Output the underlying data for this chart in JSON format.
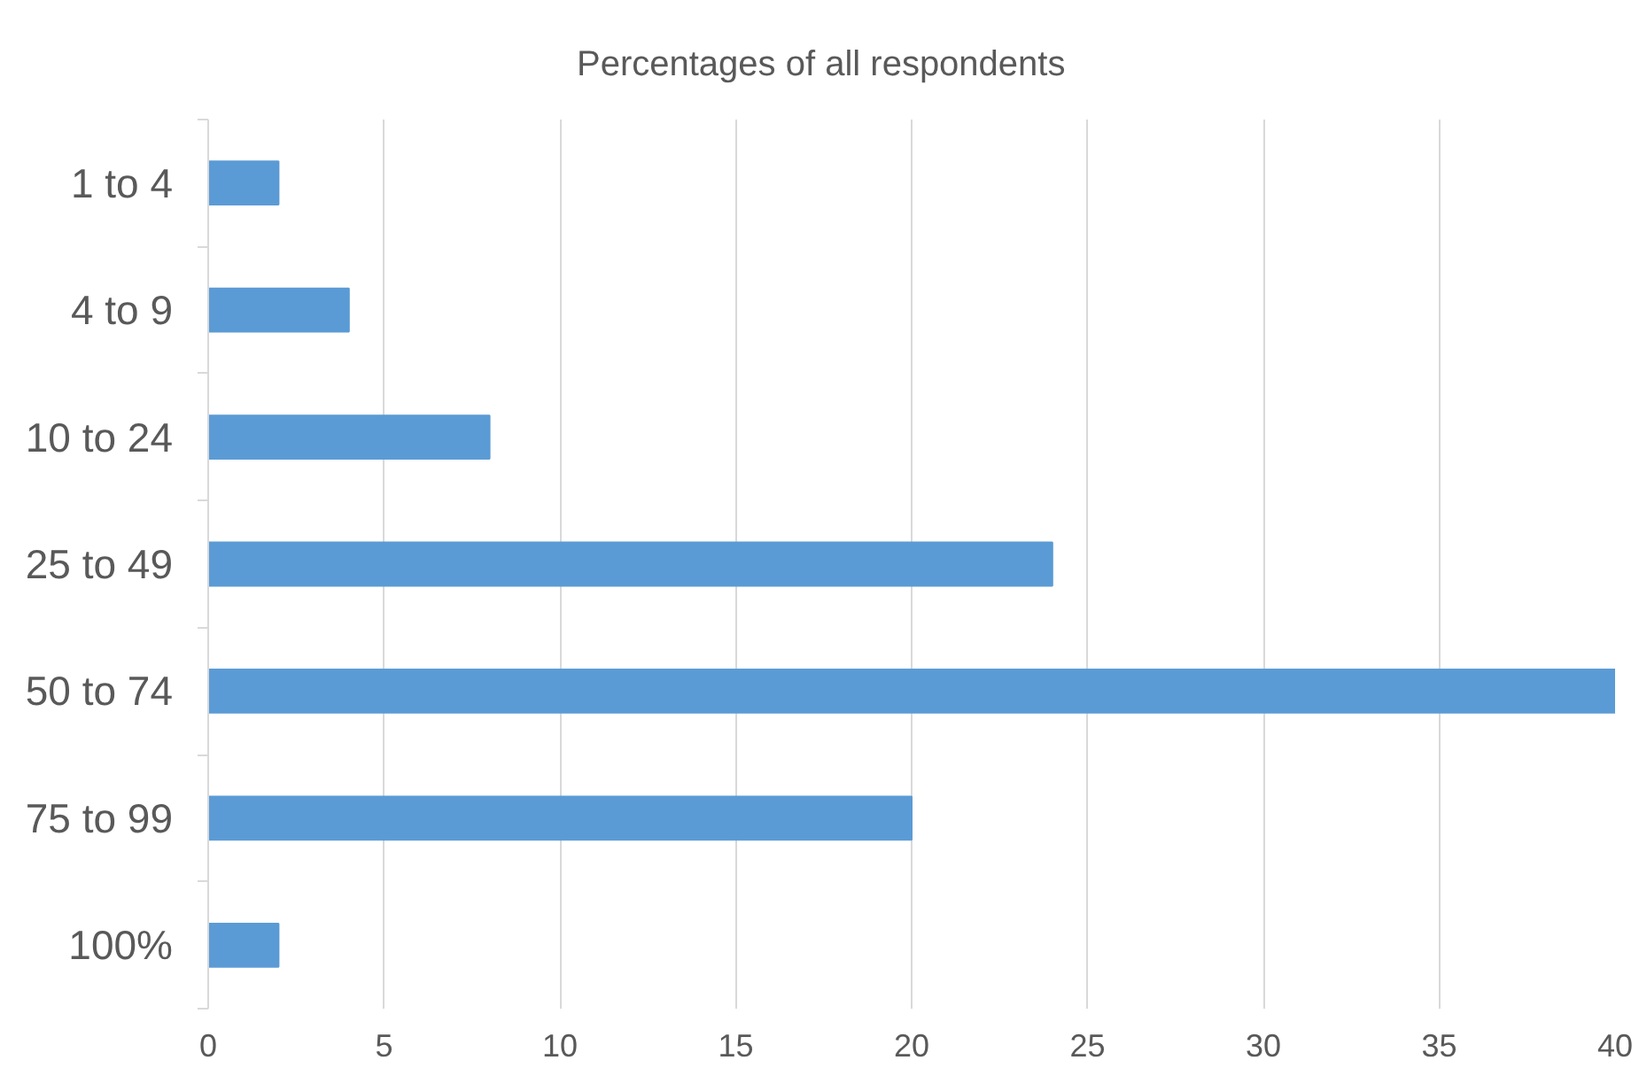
{
  "chart_data": {
    "type": "bar",
    "orientation": "horizontal",
    "title": "Percentages of all respondents",
    "categories": [
      "1 to 4",
      "4 to 9",
      "10 to 24",
      "25 to 49",
      "50 to 74",
      "75 to 99",
      "100%"
    ],
    "values": [
      2,
      4,
      8,
      24,
      40,
      20,
      2
    ],
    "color": "#5b9bd5",
    "xlim": [
      0,
      40
    ],
    "xticks": [
      0,
      5,
      10,
      15,
      20,
      25,
      30,
      35,
      40
    ],
    "grid": "x"
  }
}
